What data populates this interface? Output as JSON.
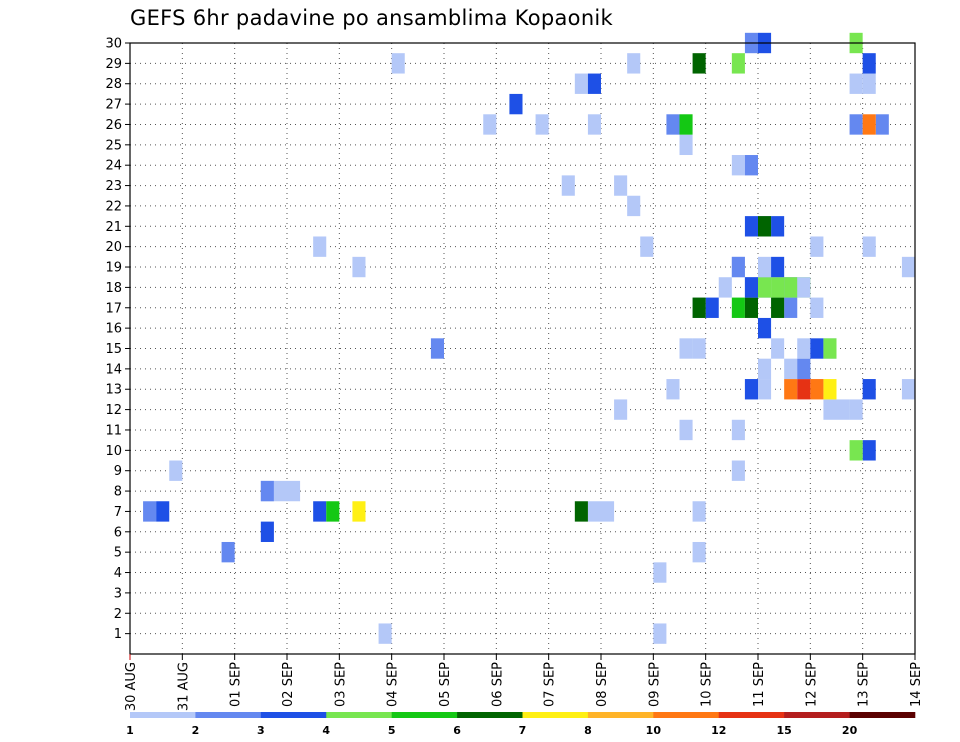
{
  "chart_data": {
    "type": "heatmap",
    "title": "GEFS 6hr padavine po ansamblima Kopaonik",
    "x_tick_labels": [
      "30 AUG",
      "31 AUG",
      "01 SEP",
      "02 SEP",
      "03 SEP",
      "04 SEP",
      "05 SEP",
      "06 SEP",
      "07 SEP",
      "08 SEP",
      "09 SEP",
      "10 SEP",
      "11 SEP",
      "12 SEP",
      "13 SEP",
      "14 SEP"
    ],
    "y_ticks": [
      1,
      2,
      3,
      4,
      5,
      6,
      7,
      8,
      9,
      10,
      11,
      12,
      13,
      14,
      15,
      16,
      17,
      18,
      19,
      20,
      21,
      22,
      23,
      24,
      25,
      26,
      27,
      28,
      29,
      30
    ],
    "time_steps_per_day": 4,
    "x_range_steps": [
      0,
      60
    ],
    "y_range_members": [
      0,
      30
    ],
    "grid": true,
    "legend": {
      "labels": [
        "1",
        "2",
        "3",
        "4",
        "5",
        "6",
        "7",
        "8",
        "10",
        "12",
        "15",
        "20"
      ],
      "colors": [
        "#b4c8f8",
        "#6488f0",
        "#1e50e6",
        "#78e650",
        "#14c814",
        "#006400",
        "#fff014",
        "#ffb428",
        "#ff7814",
        "#e63214",
        "#b41e1e",
        "#5a0000"
      ]
    },
    "cells": [
      [
        1,
        41,
        1
      ],
      [
        1,
        20,
        1
      ],
      [
        4,
        41,
        1
      ],
      [
        5,
        44,
        1
      ],
      [
        5,
        8,
        2
      ],
      [
        6,
        11,
        3
      ],
      [
        7,
        36,
        1
      ],
      [
        7,
        37,
        1
      ],
      [
        7,
        44,
        1
      ],
      [
        7,
        2,
        2
      ],
      [
        7,
        3,
        3
      ],
      [
        7,
        15,
        3
      ],
      [
        7,
        16,
        5
      ],
      [
        7,
        35,
        6
      ],
      [
        7,
        18,
        7
      ],
      [
        8,
        11,
        1
      ],
      [
        8,
        11,
        2
      ],
      [
        8,
        12,
        1
      ],
      [
        8,
        13,
        1
      ],
      [
        9,
        47,
        1
      ],
      [
        9,
        4,
        1
      ],
      [
        10,
        57,
        3
      ],
      [
        10,
        56,
        4
      ],
      [
        11,
        43,
        1
      ],
      [
        11,
        47,
        1
      ],
      [
        12,
        38,
        1
      ],
      [
        12,
        54,
        1
      ],
      [
        12,
        55,
        1
      ],
      [
        12,
        56,
        1
      ],
      [
        13,
        42,
        1
      ],
      [
        13,
        48,
        1
      ],
      [
        13,
        49,
        1
      ],
      [
        13,
        60,
        1
      ],
      [
        13,
        48,
        3
      ],
      [
        13,
        57,
        3
      ],
      [
        13,
        54,
        7
      ],
      [
        13,
        53,
        9
      ],
      [
        13,
        51,
        9
      ],
      [
        13,
        52,
        10
      ],
      [
        14,
        49,
        1
      ],
      [
        14,
        51,
        1
      ],
      [
        14,
        52,
        1
      ],
      [
        14,
        52,
        2
      ],
      [
        15,
        43,
        1
      ],
      [
        15,
        44,
        1
      ],
      [
        15,
        50,
        1
      ],
      [
        15,
        52,
        1
      ],
      [
        15,
        54,
        1
      ],
      [
        15,
        53,
        3
      ],
      [
        15,
        54,
        4
      ],
      [
        15,
        24,
        2
      ],
      [
        16,
        49,
        3
      ],
      [
        17,
        53,
        1
      ],
      [
        17,
        44,
        1
      ],
      [
        17,
        50,
        1
      ],
      [
        17,
        51,
        2
      ],
      [
        17,
        45,
        3
      ],
      [
        17,
        47,
        5
      ],
      [
        17,
        44,
        6
      ],
      [
        17,
        48,
        6
      ],
      [
        17,
        50,
        6
      ],
      [
        18,
        46,
        1
      ],
      [
        18,
        49,
        1
      ],
      [
        18,
        48,
        2
      ],
      [
        18,
        49,
        2
      ],
      [
        18,
        51,
        2
      ],
      [
        18,
        48,
        3
      ],
      [
        18,
        49,
        4
      ],
      [
        18,
        50,
        4
      ],
      [
        18,
        51,
        4
      ],
      [
        18,
        52,
        4
      ],
      [
        18,
        52,
        1
      ],
      [
        19,
        47,
        1
      ],
      [
        19,
        49,
        1
      ],
      [
        19,
        60,
        1
      ],
      [
        19,
        47,
        2
      ],
      [
        19,
        50,
        3
      ],
      [
        19,
        18,
        1
      ],
      [
        20,
        57,
        1
      ],
      [
        20,
        53,
        1
      ],
      [
        20,
        15,
        1
      ],
      [
        20,
        40,
        1
      ],
      [
        21,
        50,
        3
      ],
      [
        21,
        49,
        2
      ],
      [
        21,
        48,
        3
      ],
      [
        21,
        49,
        6
      ],
      [
        22,
        39,
        1
      ],
      [
        23,
        38,
        1
      ],
      [
        23,
        34,
        1
      ],
      [
        24,
        47,
        1
      ],
      [
        24,
        48,
        2
      ],
      [
        25,
        43,
        1
      ],
      [
        26,
        28,
        1
      ],
      [
        26,
        32,
        1
      ],
      [
        26,
        36,
        1
      ],
      [
        26,
        56,
        2
      ],
      [
        26,
        58,
        2
      ],
      [
        26,
        42,
        2
      ],
      [
        26,
        43,
        5
      ],
      [
        26,
        57,
        9
      ],
      [
        27,
        30,
        3
      ],
      [
        28,
        35,
        1
      ],
      [
        28,
        56,
        1
      ],
      [
        28,
        57,
        1
      ],
      [
        28,
        36,
        3
      ],
      [
        29,
        21,
        1
      ],
      [
        29,
        39,
        1
      ],
      [
        29,
        47,
        4
      ],
      [
        29,
        57,
        3
      ],
      [
        29,
        44,
        6
      ],
      [
        30,
        48,
        2
      ],
      [
        30,
        49,
        3
      ],
      [
        30,
        56,
        4
      ]
    ]
  }
}
